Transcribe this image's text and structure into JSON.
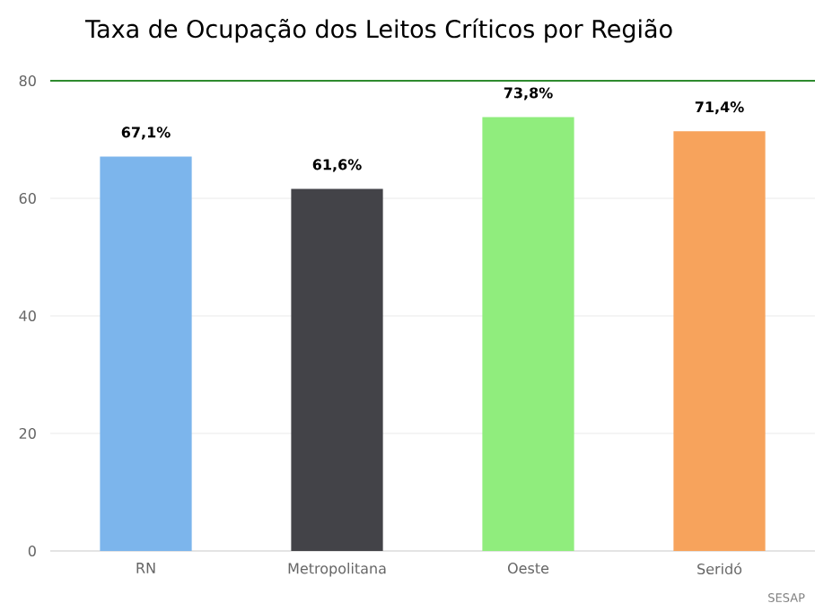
{
  "chart_data": {
    "type": "bar",
    "title": "Taxa de Ocupação dos Leitos Críticos por Região",
    "categories": [
      "RN",
      "Metropolitana",
      "Oeste",
      "Seridó"
    ],
    "values": [
      67.1,
      61.6,
      73.8,
      71.4
    ],
    "colors": [
      "#7cb5ec",
      "#434348",
      "#90ed7d",
      "#f7a35c"
    ],
    "value_labels": [
      "67,1%",
      "61,6%",
      "73,8%",
      "71,4%"
    ],
    "ylim": [
      0,
      80
    ],
    "yticks": [
      0,
      20,
      40,
      60,
      80
    ],
    "grid": "y",
    "ref_lines": [
      {
        "axis": "y",
        "value": 80,
        "color": "#2e8b2e"
      }
    ],
    "annotations": [
      "SESAP"
    ]
  }
}
